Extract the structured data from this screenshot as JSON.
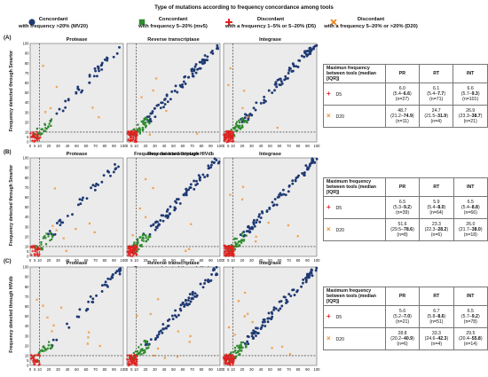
{
  "legend": {
    "title": "Type of mutations according to frequency concordance among tools",
    "items": [
      {
        "shape": "circle",
        "color": "#1f3a73",
        "line1": "Concordant",
        "line2": "with frequency >20% (MV20)"
      },
      {
        "shape": "square",
        "color": "#2e8b2e",
        "line1": "Concordant",
        "line2": "with frequency 5–20% (mv5)"
      },
      {
        "shape": "plus",
        "color": "#e02020",
        "line1": "Discordant",
        "line2": "with a frequency 1–5% or 5–20% (D5)"
      },
      {
        "shape": "cross",
        "color": "#f08a24",
        "line1": "Discordant",
        "line2": "with a frequency 5–20% or >20% (D20)"
      }
    ]
  },
  "chart_data": [
    {
      "type": "scatter",
      "panel": "(A)",
      "ylabel": "Frequency detected through Smartor",
      "xlabel": "Frequency detected through HIVdb",
      "subplots": [
        "Protease",
        "Reverse transcriptase",
        "Integrase"
      ],
      "ticks": [
        0,
        5,
        10,
        20,
        30,
        40,
        50,
        60,
        70,
        80,
        90,
        100
      ],
      "threshold": 10
    },
    {
      "type": "scatter",
      "panel": "(B)",
      "ylabel": "Frequency detected through Smartor",
      "xlabel": "Frequency detected through Hydra",
      "subplots": [
        "Protease",
        "Reverse transcriptase",
        "Integrase"
      ],
      "ticks": [
        0,
        5,
        10,
        20,
        30,
        40,
        50,
        60,
        70,
        80,
        90,
        100
      ],
      "threshold": 10
    },
    {
      "type": "scatter",
      "panel": "(C)",
      "ylabel": "Frequency detected through HIVdb",
      "xlabel": "Frequency detected through Hydra",
      "subplots": [
        "Protease",
        "Reverse transcriptase",
        "Integrase"
      ],
      "ticks": [
        0,
        5,
        10,
        20,
        30,
        40,
        50,
        60,
        70,
        80,
        90,
        100
      ],
      "threshold": 10
    }
  ],
  "tables": [
    {
      "header": [
        "Maximun frequency between tools (median [IQR])",
        "PR",
        "RT",
        "INT"
      ],
      "rows": [
        {
          "label": "D5",
          "symbol": "plus",
          "cells": [
            {
              "median": "6.0",
              "iqr_lo": "5.4",
              "iqr_hi": "6.6",
              "n": "(n=27)"
            },
            {
              "median": "6.1",
              "iqr_lo": "5.4",
              "iqr_hi": "7.7",
              "n": "(n=71)"
            },
            {
              "median": "6.6",
              "iqr_lo": "5.7",
              "iqr_hi": "9.3",
              "n": "(n=101)"
            }
          ]
        },
        {
          "label": "D20",
          "symbol": "cross",
          "cells": [
            {
              "median": "48.7",
              "iqr_lo": "21.2",
              "iqr_hi": "74.9",
              "n": "(n=11)"
            },
            {
              "median": "24.7",
              "iqr_lo": "21.5",
              "iqr_hi": "31.9",
              "n": "(n=4)"
            },
            {
              "median": "26.9",
              "iqr_lo": "23.3",
              "iqr_hi": "38.7",
              "n": "(n=21)"
            }
          ]
        }
      ]
    },
    {
      "header": [
        "Maximum frequency between tools (median [IQR])",
        "PR",
        "RT",
        "INT"
      ],
      "rows": [
        {
          "label": "D5",
          "symbol": "plus",
          "cells": [
            {
              "median": "6.5",
              "iqr_lo": "5.3",
              "iqr_hi": "9.2",
              "n": "(n=39)"
            },
            {
              "median": "5.9",
              "iqr_lo": "5.4",
              "iqr_hi": "8.0",
              "n": "(n=64)"
            },
            {
              "median": "6.5",
              "iqr_lo": "5.4",
              "iqr_hi": "8.8",
              "n": "(n=66)"
            }
          ]
        },
        {
          "label": "D20",
          "symbol": "cross",
          "cells": [
            {
              "median": "51.6",
              "iqr_lo": "29.5",
              "iqr_hi": "78.6",
              "n": "(n=8)"
            },
            {
              "median": "23.3",
              "iqr_lo": "22.3",
              "iqr_hi": "28.2",
              "n": "(n=6)"
            },
            {
              "median": "26.0",
              "iqr_lo": "21.7",
              "iqr_hi": "38.0",
              "n": "(n=18)"
            }
          ]
        }
      ]
    },
    {
      "header": [
        "Maximum frequency between tools (median [IQR])",
        "PR",
        "RT",
        "INT"
      ],
      "rows": [
        {
          "label": "D5",
          "symbol": "plus",
          "cells": [
            {
              "median": "5.6",
              "iqr_lo": "5.2",
              "iqr_hi": "7.0",
              "n": "(n=21)"
            },
            {
              "median": "6.7",
              "iqr_lo": "5.8",
              "iqr_hi": "8.6",
              "n": "(n=51)"
            },
            {
              "median": "6.5",
              "iqr_lo": "5.7",
              "iqr_hi": "9.2",
              "n": "(n=78)"
            }
          ]
        },
        {
          "label": "D20",
          "symbol": "cross",
          "cells": [
            {
              "median": "28.8",
              "iqr_lo": "20.2",
              "iqr_hi": "40.9",
              "n": "(n=6)"
            },
            {
              "median": "33.3",
              "iqr_lo": "24.6",
              "iqr_hi": "42.3",
              "n": "(n=4)"
            },
            {
              "median": "29.5",
              "iqr_lo": "20.4",
              "iqr_hi": "55.8",
              "n": "(n=14)"
            }
          ]
        }
      ]
    }
  ]
}
